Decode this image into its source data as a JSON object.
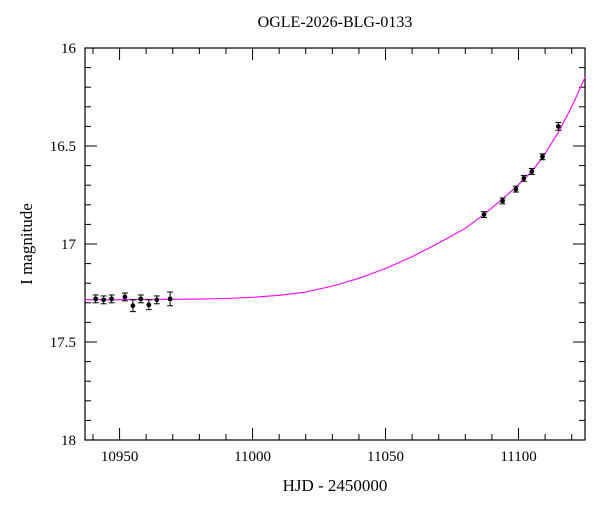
{
  "chart_data": {
    "type": "scatter",
    "title": "OGLE-2026-BLG-0133",
    "xlabel": "HJD - 2450000",
    "ylabel": "I magnitude",
    "xlim": [
      10937,
      11125
    ],
    "ylim": [
      16,
      18
    ],
    "y_axis_inverted": true,
    "grid": false,
    "legend": "none",
    "x_major_ticks": [
      10950,
      11000,
      11050,
      11100
    ],
    "x_tick_labels": [
      "10950",
      "11000",
      "11050",
      "11100"
    ],
    "x_minor_step": 10,
    "y_major_ticks": [
      16,
      16.5,
      17,
      17.5,
      18
    ],
    "y_tick_labels": [
      "16",
      "16.5",
      "17",
      "17.5",
      "18"
    ],
    "y_minor_step": 0.1,
    "colors": {
      "background": "#ffffff",
      "frame": "#000000",
      "model_curve": "#ff00ff",
      "data_points": "#000000"
    },
    "series": [
      {
        "name": "photometry",
        "type": "scatter_errorbar",
        "color": "#000000",
        "points": [
          {
            "x": 10941,
            "y": 17.28,
            "err": 0.02
          },
          {
            "x": 10944,
            "y": 17.285,
            "err": 0.02
          },
          {
            "x": 10947,
            "y": 17.28,
            "err": 0.02
          },
          {
            "x": 10952,
            "y": 17.27,
            "err": 0.02
          },
          {
            "x": 10955,
            "y": 17.315,
            "err": 0.03
          },
          {
            "x": 10958,
            "y": 17.28,
            "err": 0.02
          },
          {
            "x": 10961,
            "y": 17.31,
            "err": 0.025
          },
          {
            "x": 10964,
            "y": 17.285,
            "err": 0.02
          },
          {
            "x": 10969,
            "y": 17.28,
            "err": 0.035
          },
          {
            "x": 11087,
            "y": 16.85,
            "err": 0.015
          },
          {
            "x": 11094,
            "y": 16.78,
            "err": 0.015
          },
          {
            "x": 11099,
            "y": 16.72,
            "err": 0.015
          },
          {
            "x": 11102,
            "y": 16.665,
            "err": 0.015
          },
          {
            "x": 11105,
            "y": 16.63,
            "err": 0.015
          },
          {
            "x": 11109,
            "y": 16.555,
            "err": 0.015
          },
          {
            "x": 11115,
            "y": 16.4,
            "err": 0.02
          }
        ]
      },
      {
        "name": "model",
        "type": "line",
        "color": "#ff00ff",
        "points": [
          [
            10937,
            17.284
          ],
          [
            10950,
            17.284
          ],
          [
            10960,
            17.283
          ],
          [
            10970,
            17.282
          ],
          [
            10980,
            17.281
          ],
          [
            10990,
            17.278
          ],
          [
            11000,
            17.272
          ],
          [
            11010,
            17.262
          ],
          [
            11020,
            17.245
          ],
          [
            11030,
            17.215
          ],
          [
            11040,
            17.175
          ],
          [
            11050,
            17.125
          ],
          [
            11060,
            17.065
          ],
          [
            11070,
            16.995
          ],
          [
            11080,
            16.92
          ],
          [
            11087,
            16.85
          ],
          [
            11094,
            16.77
          ],
          [
            11099,
            16.71
          ],
          [
            11102,
            16.67
          ],
          [
            11105,
            16.63
          ],
          [
            11109,
            16.56
          ],
          [
            11115,
            16.43
          ],
          [
            11120,
            16.3
          ],
          [
            11125,
            16.15
          ]
        ]
      }
    ]
  }
}
